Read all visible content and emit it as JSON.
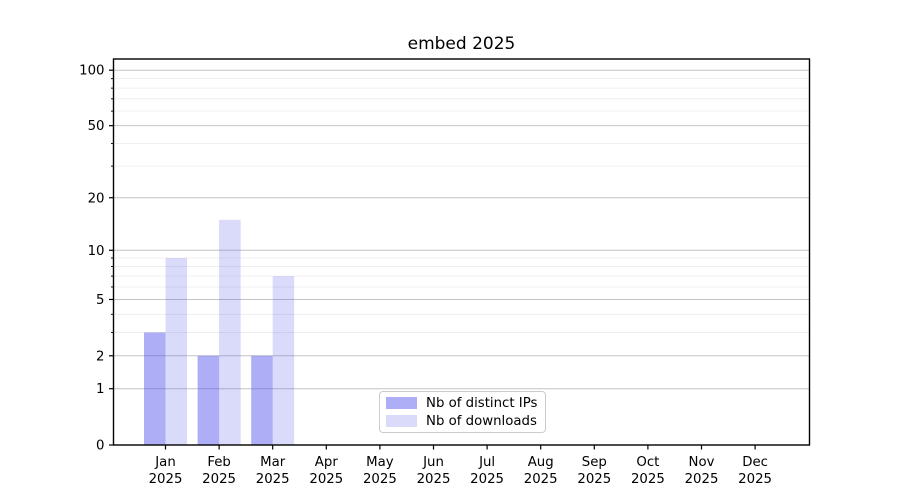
{
  "chart_data": {
    "type": "bar",
    "title": "embed 2025",
    "year": "2025",
    "categories": [
      "Jan",
      "Feb",
      "Mar",
      "Apr",
      "May",
      "Jun",
      "Jul",
      "Aug",
      "Sep",
      "Oct",
      "Nov",
      "Dec"
    ],
    "series": [
      {
        "name": "Nb of distinct IPs",
        "color": "#5555ee",
        "alpha": 0.48,
        "values": [
          3,
          2,
          2,
          0,
          0,
          0,
          0,
          0,
          0,
          0,
          0,
          0
        ]
      },
      {
        "name": "Nb of downloads",
        "color": "#5555ee",
        "alpha": 0.22,
        "values": [
          9,
          15,
          7,
          0,
          0,
          0,
          0,
          0,
          0,
          0,
          0,
          0
        ]
      }
    ],
    "scale": "log1p",
    "y_major_ticks": [
      0,
      1,
      2,
      5,
      10,
      20,
      50,
      100
    ],
    "y_minor_ticks": [
      3,
      4,
      6,
      7,
      8,
      9,
      30,
      40,
      60,
      70,
      80,
      90
    ],
    "ylim": [
      0,
      116
    ],
    "grid": "on",
    "legend_position": "lower center",
    "colors": {
      "major_grid": "#c4c4c4",
      "minor_grid": "#ececec",
      "spine": "#000000",
      "tick_label": "#000000",
      "legend_border": "#cccccc"
    }
  }
}
